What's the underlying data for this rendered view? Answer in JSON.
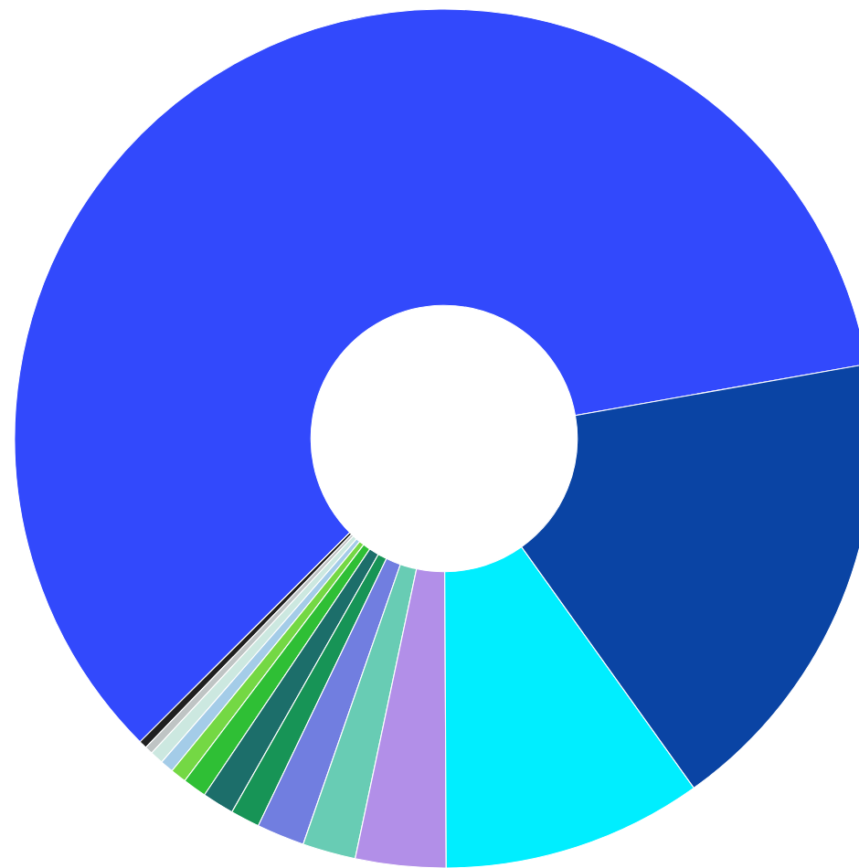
{
  "chart_data": {
    "type": "donut",
    "categories": [
      null,
      null,
      null,
      null,
      null,
      null,
      null,
      null,
      null,
      null,
      null,
      null,
      null,
      null
    ],
    "values": [
      59.7,
      0.3,
      0.3,
      0.5,
      0.5,
      0.6,
      0.9,
      1.2,
      1.1,
      1.8,
      2.0,
      3.4,
      9.8,
      17.9
    ],
    "colors": [
      "#3249fc",
      "#202020",
      "#bfc4c4",
      "#cce8e0",
      "#a4cce8",
      "#74d844",
      "#2fbf35",
      "#1c6e6a",
      "#179456",
      "#717ee0",
      "#68ccb4",
      "#b28fe8",
      "#00eeff",
      "#0a44a4"
    ]
  }
}
